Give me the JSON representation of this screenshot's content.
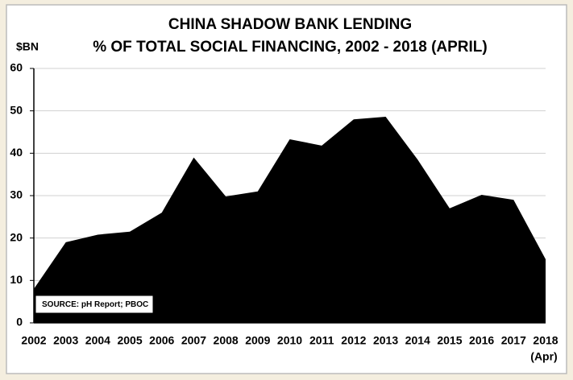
{
  "chart_data": {
    "type": "area",
    "title": "CHINA SHADOW BANK LENDING",
    "subtitle": "% OF TOTAL SOCIAL FINANCING, 2002 - 2018 (APRIL)",
    "y_label": "$BN",
    "x_note": "(Apr)",
    "annotation": "SOURCE: pH Report; PBOC",
    "categories": [
      "2002",
      "2003",
      "2004",
      "2005",
      "2006",
      "2007",
      "2008",
      "2009",
      "2010",
      "2011",
      "2012",
      "2013",
      "2014",
      "2015",
      "2016",
      "2017",
      "2018"
    ],
    "values": [
      8,
      19,
      20.8,
      21.5,
      26,
      39,
      29.8,
      31,
      43.3,
      41.8,
      48,
      48.6,
      38.5,
      27,
      30.2,
      29,
      15
    ],
    "color": "#000000",
    "ylim": [
      0,
      60
    ],
    "yticks": [
      0,
      10,
      20,
      30,
      40,
      50,
      60
    ],
    "grid": true
  }
}
